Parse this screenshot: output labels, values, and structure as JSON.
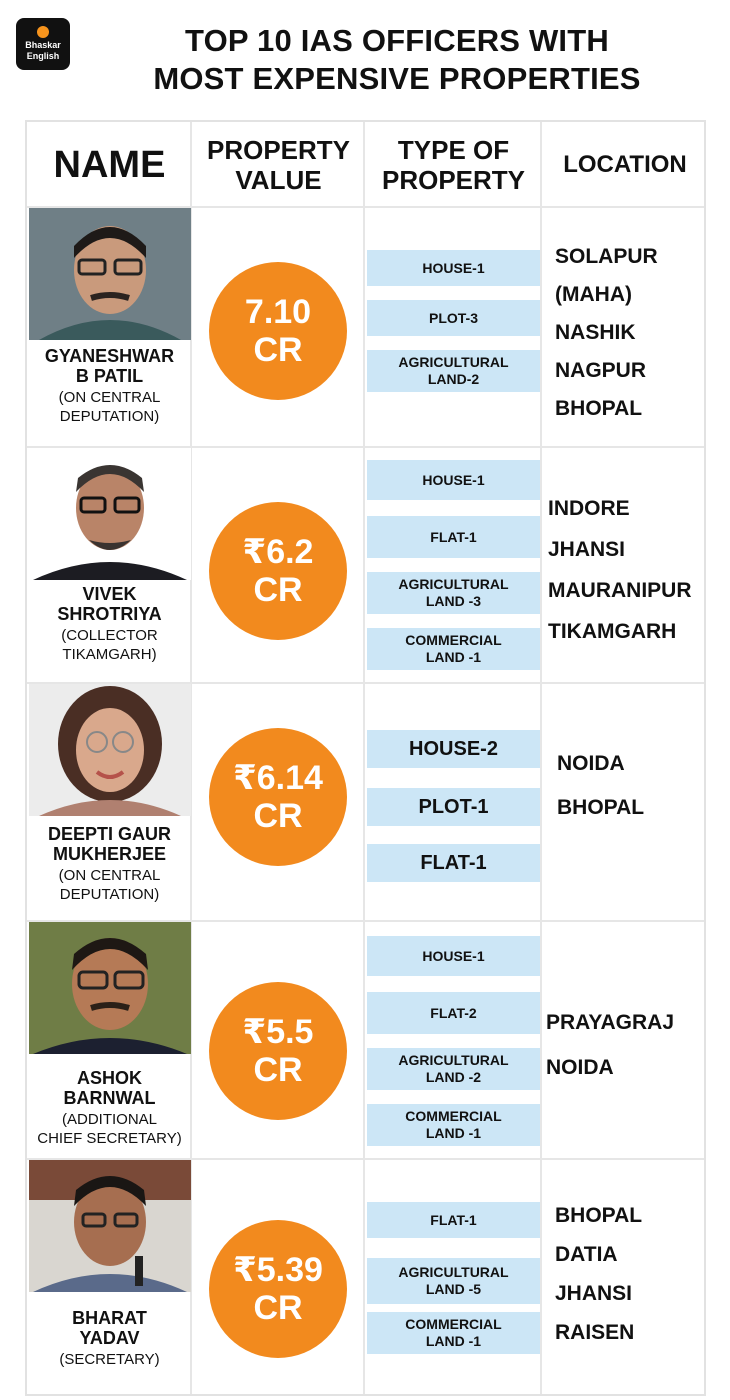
{
  "brand": {
    "line1": "Bhaskar",
    "line2": "English"
  },
  "title": {
    "line1": "TOP 10 IAS OFFICERS WITH",
    "line2": "MOST EXPENSIVE PROPERTIES"
  },
  "headers": {
    "name": "NAME",
    "value_line1": "PROPERTY",
    "value_line2": "VALUE",
    "type_line1": "TYPE OF",
    "type_line2": "PROPERTY",
    "location": "LOCATION"
  },
  "colors": {
    "accent": "#f28a1e",
    "property_bar": "#cce6f6",
    "grid": "#e6e6e6"
  },
  "officers": [
    {
      "name_line1": "GYANESHWAR",
      "name_line2": "B PATIL",
      "role_line1": "(ON CENTRAL",
      "role_line2": "DEPUTATION)",
      "value_line1": "7.10",
      "value_line2": "CR",
      "properties": [
        [
          "HOUSE-1"
        ],
        [
          "PLOT-3"
        ],
        [
          "AGRICULTURAL",
          "LAND-2"
        ]
      ],
      "locations": [
        "SOLAPUR",
        "(MAHA)",
        "NASHIK",
        "NAGPUR",
        "BHOPAL"
      ]
    },
    {
      "name_line1": "VIVEK",
      "name_line2": "SHROTRIYA",
      "role_line1": "(COLLECTOR",
      "role_line2": "TIKAMGARH)",
      "value_line1": "₹6.2",
      "value_line2": "CR",
      "properties": [
        [
          "HOUSE-1"
        ],
        [
          "FLAT-1"
        ],
        [
          "AGRICULTURAL",
          "LAND -3"
        ],
        [
          "COMMERCIAL",
          "LAND -1"
        ]
      ],
      "locations": [
        "INDORE",
        "JHANSI",
        "MAURANIPUR",
        "TIKAMGARH"
      ]
    },
    {
      "name_line1": "DEEPTI GAUR",
      "name_line2": "MUKHERJEE",
      "role_line1": "(ON CENTRAL",
      "role_line2": "DEPUTATION)",
      "value_line1": "₹6.14",
      "value_line2": "CR",
      "properties": [
        [
          "HOUSE-2"
        ],
        [
          "PLOT-1"
        ],
        [
          "FLAT-1"
        ]
      ],
      "locations": [
        "NOIDA",
        "BHOPAL"
      ]
    },
    {
      "name_line1": "ASHOK",
      "name_line2": "BARNWAL",
      "role_line1": "(ADDITIONAL",
      "role_line2": "CHIEF SECRETARY)",
      "value_line1": "₹5.5",
      "value_line2": "CR",
      "properties": [
        [
          "HOUSE-1"
        ],
        [
          "FLAT-2"
        ],
        [
          "AGRICULTURAL",
          "LAND -2"
        ],
        [
          "COMMERCIAL",
          "LAND -1"
        ]
      ],
      "locations": [
        "PRAYAGRAJ",
        "NOIDA"
      ]
    },
    {
      "name_line1": "BHARAT",
      "name_line2": "YADAV",
      "role_line1": "(SECRETARY)",
      "role_line2": "",
      "value_line1": "₹5.39",
      "value_line2": "CR",
      "properties": [
        [
          "FLAT-1"
        ],
        [
          "AGRICULTURAL",
          "LAND -5"
        ],
        [
          "COMMERCIAL",
          "LAND -1"
        ]
      ],
      "locations": [
        "BHOPAL",
        "DATIA",
        "JHANSI",
        "RAISEN"
      ]
    }
  ]
}
